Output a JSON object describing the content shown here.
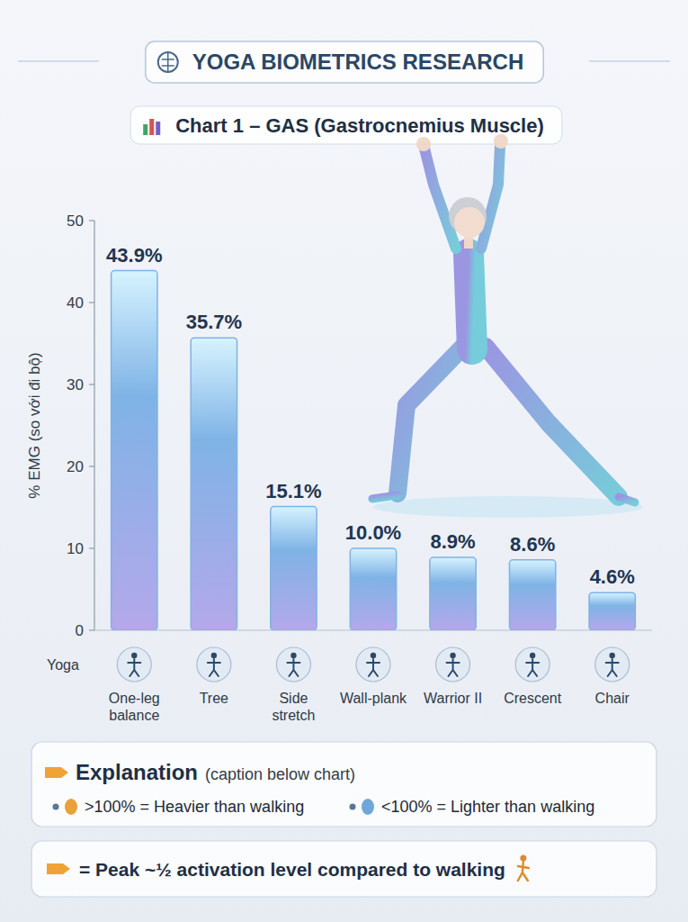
{
  "header": {
    "badge": "YOGA BIOMETRICS RESEARCH"
  },
  "chart_data": {
    "type": "bar",
    "title": "Chart 1 – GAS (Gastrocnemius Muscle)",
    "y_label": "% EMG (so với đi bộ)",
    "x_label": "Yoga",
    "categories": [
      "One-leg balance",
      "Tree",
      "Side stretch",
      "Wall-plank",
      "Warrior II",
      "Crescent",
      "Chair"
    ],
    "values": [
      43.9,
      35.7,
      15.1,
      10.0,
      8.9,
      8.6,
      4.6
    ],
    "value_labels": [
      "43.9%",
      "35.7%",
      "15.1%",
      "10.0%",
      "8.9%",
      "8.6%",
      "4.6%"
    ],
    "color": "#7fb3e6",
    "ylim": [
      0,
      50
    ],
    "yticks": [
      0,
      10,
      20,
      30,
      40,
      50
    ],
    "grid": false,
    "data_labels": true
  },
  "explanation": {
    "title": "Explanation",
    "note": "(caption below chart)",
    "items": [
      ">100% = Heavier than walking",
      "<100% = Lighter than walking"
    ]
  },
  "footer": "= Peak ~½ activation level compared to walking"
}
